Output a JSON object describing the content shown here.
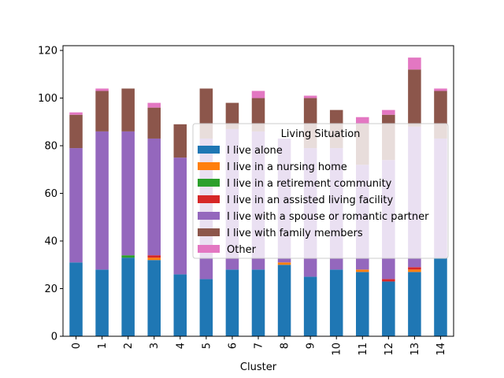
{
  "chart_data": {
    "type": "bar",
    "stacked": true,
    "xlabel": "Cluster",
    "ylabel": "",
    "ylim": [
      0,
      122
    ],
    "yticks": [
      0,
      20,
      40,
      60,
      80,
      100,
      120
    ],
    "categories": [
      "0",
      "1",
      "2",
      "3",
      "4",
      "5",
      "6",
      "7",
      "8",
      "9",
      "10",
      "11",
      "12",
      "13",
      "14"
    ],
    "legend": {
      "title": "Living Situation",
      "placement": "center-right"
    },
    "series": [
      {
        "name": "I live alone",
        "color": "#1f77b4",
        "values": [
          31,
          28,
          33,
          32,
          26,
          24,
          28,
          28,
          30,
          25,
          28,
          27,
          23,
          27,
          33
        ]
      },
      {
        "name": "I live in a nursing home",
        "color": "#ff7f0e",
        "values": [
          0,
          0,
          0,
          1,
          0,
          0,
          0,
          0,
          1,
          0,
          0,
          1,
          0,
          1,
          0
        ]
      },
      {
        "name": "I live in a retirement community",
        "color": "#2ca02c",
        "values": [
          0,
          0,
          1,
          0,
          0,
          0,
          0,
          0,
          0,
          0,
          0,
          0,
          0,
          0,
          0
        ]
      },
      {
        "name": "I live in an assisted living facility",
        "color": "#d62728",
        "values": [
          0,
          0,
          0,
          1,
          0,
          0,
          0,
          0,
          0,
          0,
          0,
          0,
          1,
          1,
          0
        ]
      },
      {
        "name": "I live with a spouse or romantic partner",
        "color": "#9467bd",
        "values": [
          48,
          58,
          52,
          49,
          49,
          59,
          59,
          58,
          52,
          54,
          51,
          44,
          50,
          59,
          50
        ]
      },
      {
        "name": "I live with family members",
        "color": "#8c564b",
        "values": [
          14,
          17,
          18,
          13,
          14,
          21,
          11,
          14,
          0,
          21,
          16,
          17,
          19,
          24,
          20
        ]
      },
      {
        "name": "Other",
        "color": "#e377c2",
        "values": [
          1,
          1,
          0,
          2,
          0,
          0,
          0,
          3,
          0,
          1,
          0,
          3,
          2,
          5,
          1
        ]
      }
    ]
  }
}
